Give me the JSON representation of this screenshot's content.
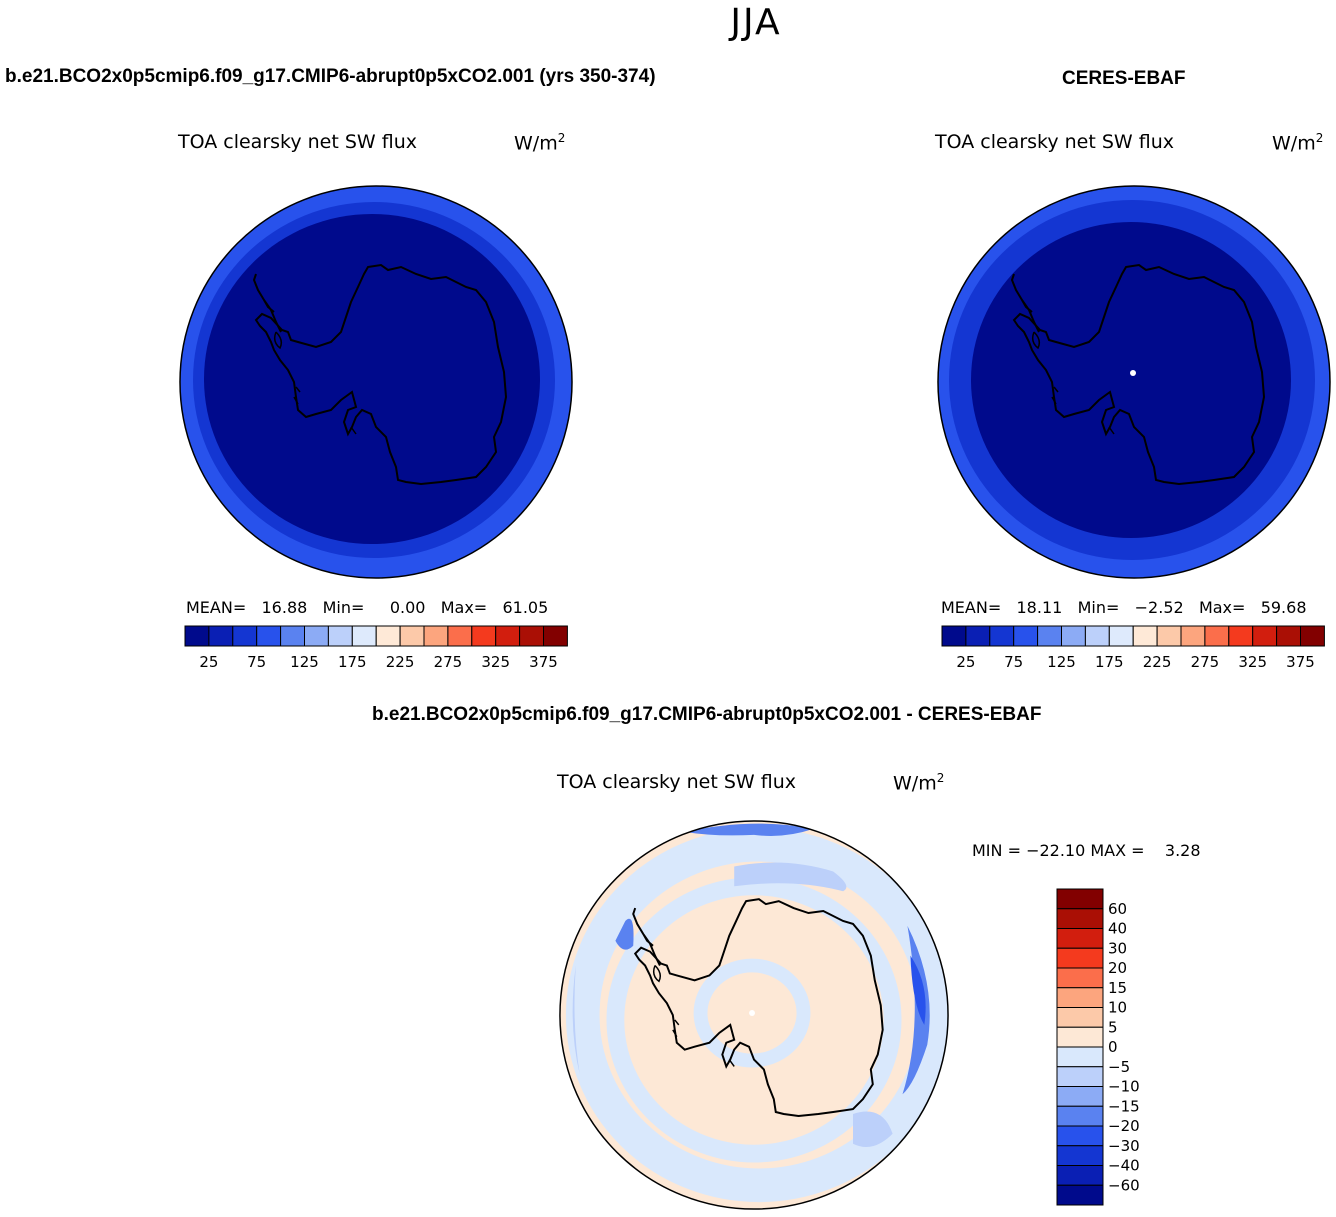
{
  "figure": {
    "season": "JJA",
    "colors": {
      "lbl": [
        "#000a8c",
        "#0a1fb4",
        "#1436d2",
        "#2852ec",
        "#5a82f0",
        "#8cabf5",
        "#bcd0fa",
        "#deeafc",
        "#fee9d7",
        "#fcc9a9",
        "#fca57e",
        "#fb6e4b",
        "#f43a1e",
        "#d21e0e",
        "#aa0f05",
        "#820000"
      ],
      "diff": [
        "#000a8c",
        "#0a1fb4",
        "#1436d2",
        "#2852ec",
        "#5a82f0",
        "#8cabf5",
        "#bcd0fa",
        "#d9e8fc",
        "#fde8d6",
        "#fcc9a9",
        "#fca57e",
        "#fb6e4b",
        "#f43a1e",
        "#d21e0e",
        "#aa0f05",
        "#820000"
      ]
    }
  },
  "panels": {
    "model": {
      "header": "b.e21.BCO2x0p5cmip6.f09_g17.CMIP6-abrupt0p5xCO2.001 (yrs 350-374)",
      "variable": "TOA clearsky net SW flux",
      "units": "W/m",
      "units_sup": "2",
      "mean_label": "MEAN=",
      "mean": "16.88",
      "min_label": "Min=",
      "min": "0.00",
      "max_label": "Max=",
      "max": "61.05"
    },
    "obs": {
      "header": "CERES-EBAF",
      "variable": "TOA clearsky net SW flux",
      "units": "W/m",
      "units_sup": "2",
      "mean_label": "MEAN=",
      "mean": "18.11",
      "min_label": "Min=",
      "min": "−2.52",
      "max_label": "Max=",
      "max": "59.68"
    },
    "diff": {
      "header": "b.e21.BCO2x0p5cmip6.f09_g17.CMIP6-abrupt0p5xCO2.001 - CERES-EBAF",
      "variable": "TOA clearsky net SW flux",
      "units": "W/m",
      "units_sup": "2",
      "minmax_text": "MIN = −22.10 MAX =    3.28"
    }
  },
  "colorbars": {
    "horizontal_labels": [
      "25",
      "75",
      "125",
      "175",
      "225",
      "275",
      "325",
      "375"
    ],
    "vertical_labels": [
      "60",
      "40",
      "30",
      "20",
      "15",
      "10",
      "5",
      "0",
      "−5",
      "−10",
      "−15",
      "−20",
      "−30",
      "−40",
      "−60"
    ]
  }
}
